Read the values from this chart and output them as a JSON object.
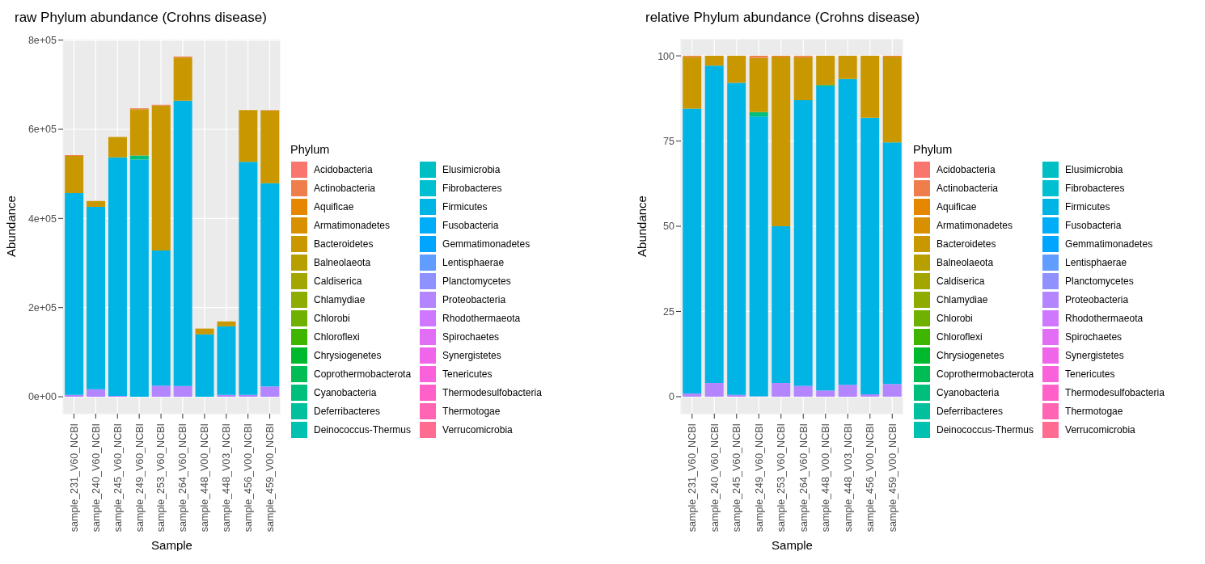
{
  "chart_data": [
    {
      "type": "bar",
      "stacked": true,
      "title": "raw Phylum abundance (Crohns disease)",
      "xlabel": "Sample",
      "ylabel": "Abundance",
      "legend_title": "Phylum",
      "legend": "right",
      "grid": true,
      "categories": [
        "sample_231_V60_NCBI",
        "sample_240_V60_NCBI",
        "sample_245_V60_NCBI",
        "sample_249_V60_NCBI",
        "sample_253_V60_NCBI",
        "sample_264_V60_NCBI",
        "sample_448_V00_NCBI",
        "sample_448_V03_NCBI",
        "sample_456_V00_NCBI",
        "sample_459_V00_NCBI"
      ],
      "ylim": [
        -38000,
        803000
      ],
      "yticks": [
        {
          "value": 0,
          "label": "0e+00"
        },
        {
          "value": 200000,
          "label": "2e+05"
        },
        {
          "value": 400000,
          "label": "4e+05"
        },
        {
          "value": 600000,
          "label": "6e+05"
        },
        {
          "value": 800000,
          "label": "8e+05"
        }
      ],
      "series": [
        {
          "name": "Verrucomicrobia",
          "color": "#ff6c91",
          "values": [
            null,
            null,
            null,
            null,
            null,
            null,
            null,
            null,
            null,
            null
          ]
        },
        {
          "name": "Thermotogae",
          "color": "#ff65b2",
          "values": [
            null,
            null,
            null,
            null,
            null,
            null,
            null,
            null,
            null,
            null
          ]
        },
        {
          "name": "Thermodesulfobacteria",
          "color": "#ff61c9",
          "values": [
            null,
            null,
            null,
            null,
            null,
            null,
            null,
            null,
            null,
            null
          ]
        },
        {
          "name": "Tenericutes",
          "color": "#fa62db",
          "values": [
            null,
            null,
            null,
            null,
            null,
            null,
            null,
            null,
            null,
            null
          ]
        },
        {
          "name": "Synergistetes",
          "color": "#f066ea",
          "values": [
            null,
            null,
            null,
            null,
            null,
            null,
            null,
            null,
            null,
            null
          ]
        },
        {
          "name": "Spirochaetes",
          "color": "#e36ef6",
          "values": [
            null,
            null,
            null,
            null,
            null,
            null,
            null,
            null,
            null,
            null
          ]
        },
        {
          "name": "Rhodothermaeota",
          "color": "#cf78ff",
          "values": [
            null,
            null,
            null,
            null,
            null,
            null,
            null,
            null,
            null,
            null
          ]
        },
        {
          "name": "Proteobacteria",
          "color": "#b385ff",
          "values": [
            4000,
            17000,
            2000,
            null,
            25000,
            24000,
            null,
            4000,
            4000,
            23000
          ]
        },
        {
          "name": "Planctomycetes",
          "color": "#8f91ff",
          "values": [
            null,
            null,
            null,
            null,
            null,
            null,
            null,
            null,
            null,
            null
          ]
        },
        {
          "name": "Lentisphaerae",
          "color": "#619cff",
          "values": [
            null,
            null,
            null,
            null,
            null,
            null,
            null,
            null,
            null,
            null
          ]
        },
        {
          "name": "Gemmatimonadetes",
          "color": "#00a5ff",
          "values": [
            null,
            null,
            null,
            null,
            null,
            null,
            null,
            null,
            null,
            null
          ]
        },
        {
          "name": "Fusobacteria",
          "color": "#00adf8",
          "values": [
            null,
            null,
            null,
            null,
            null,
            null,
            null,
            null,
            null,
            null
          ]
        },
        {
          "name": "Firmicutes",
          "color": "#00b5e6",
          "values": [
            453000,
            409000,
            535000,
            532000,
            303000,
            640000,
            140000,
            154000,
            523000,
            456000
          ]
        },
        {
          "name": "Fibrobacteres",
          "color": "#00bfd0",
          "values": [
            null,
            null,
            null,
            null,
            null,
            null,
            null,
            null,
            null,
            null
          ]
        },
        {
          "name": "Elusimicrobia",
          "color": "#00bfc4",
          "values": [
            null,
            null,
            null,
            null,
            null,
            null,
            null,
            null,
            null,
            null
          ]
        },
        {
          "name": "Deinococcus-Thermus",
          "color": "#00c0b0",
          "values": [
            null,
            null,
            null,
            null,
            null,
            null,
            null,
            null,
            null,
            null
          ]
        },
        {
          "name": "Deferribacteres",
          "color": "#00c09d",
          "values": [
            null,
            null,
            null,
            null,
            null,
            null,
            null,
            null,
            null,
            null
          ]
        },
        {
          "name": "Cyanobacteria",
          "color": "#00bf7d",
          "values": [
            null,
            null,
            null,
            9000,
            null,
            null,
            null,
            null,
            null,
            null
          ]
        },
        {
          "name": "Coprothermobacterota",
          "color": "#00bc55",
          "values": [
            null,
            null,
            null,
            null,
            null,
            null,
            null,
            null,
            null,
            null
          ]
        },
        {
          "name": "Chrysiogenetes",
          "color": "#00b92d",
          "values": [
            null,
            null,
            null,
            null,
            null,
            null,
            null,
            null,
            null,
            null
          ]
        },
        {
          "name": "Chloroflexi",
          "color": "#3fb500",
          "values": [
            null,
            null,
            null,
            null,
            null,
            null,
            null,
            null,
            null,
            null
          ]
        },
        {
          "name": "Chlorobi",
          "color": "#6fb000",
          "values": [
            null,
            null,
            null,
            null,
            null,
            null,
            null,
            null,
            null,
            null
          ]
        },
        {
          "name": "Chlamydiae",
          "color": "#8dab00",
          "values": [
            null,
            null,
            null,
            null,
            null,
            null,
            null,
            null,
            null,
            null
          ]
        },
        {
          "name": "Caldiserica",
          "color": "#a3a500",
          "values": [
            null,
            null,
            null,
            null,
            null,
            null,
            null,
            null,
            null,
            null
          ]
        },
        {
          "name": "Balneolaeota",
          "color": "#b79f00",
          "values": [
            null,
            null,
            null,
            null,
            null,
            null,
            null,
            null,
            null,
            null
          ]
        },
        {
          "name": "Bacteroidetes",
          "color": "#c99800",
          "values": [
            83000,
            13000,
            46000,
            104000,
            325000,
            97000,
            13000,
            11000,
            116000,
            163000
          ]
        },
        {
          "name": "Armatimonadetes",
          "color": "#d89000",
          "values": [
            null,
            null,
            null,
            null,
            null,
            null,
            null,
            null,
            null,
            null
          ]
        },
        {
          "name": "Aquificae",
          "color": "#e58700",
          "values": [
            null,
            null,
            null,
            null,
            null,
            null,
            null,
            null,
            null,
            null
          ]
        },
        {
          "name": "Actinobacteria",
          "color": "#f07e4d",
          "values": [
            2000,
            null,
            null,
            2000,
            2000,
            2000,
            null,
            null,
            null,
            1000
          ]
        },
        {
          "name": "Acidobacteria",
          "color": "#f8766d",
          "values": [
            null,
            null,
            null,
            null,
            null,
            null,
            null,
            null,
            null,
            null
          ]
        }
      ]
    },
    {
      "type": "bar",
      "stacked": true,
      "title": "relative Phylum abundance (Crohns disease)",
      "xlabel": "Sample",
      "ylabel": "Abundance",
      "legend_title": "Phylum",
      "legend": "right",
      "grid": true,
      "categories": [
        "sample_231_V60_NCBI",
        "sample_240_V60_NCBI",
        "sample_245_V60_NCBI",
        "sample_249_V60_NCBI",
        "sample_253_V60_NCBI",
        "sample_264_V60_NCBI",
        "sample_448_V00_NCBI",
        "sample_448_V03_NCBI",
        "sample_456_V00_NCBI",
        "sample_459_V00_NCBI"
      ],
      "ylim": [
        -5,
        105
      ],
      "yticks": [
        0,
        25,
        50,
        75,
        100
      ],
      "series": [
        {
          "name": "Verrucomicrobia",
          "color": "#ff6c91",
          "values": [
            null,
            null,
            null,
            null,
            null,
            null,
            null,
            null,
            null,
            null
          ]
        },
        {
          "name": "Thermotogae",
          "color": "#ff65b2",
          "values": [
            null,
            null,
            null,
            null,
            null,
            null,
            null,
            null,
            null,
            null
          ]
        },
        {
          "name": "Thermodesulfobacteria",
          "color": "#ff61c9",
          "values": [
            null,
            null,
            null,
            null,
            null,
            null,
            null,
            null,
            null,
            null
          ]
        },
        {
          "name": "Tenericutes",
          "color": "#fa62db",
          "values": [
            null,
            null,
            null,
            null,
            null,
            null,
            null,
            null,
            null,
            null
          ]
        },
        {
          "name": "Synergistetes",
          "color": "#f066ea",
          "values": [
            null,
            null,
            null,
            null,
            null,
            null,
            null,
            null,
            null,
            null
          ]
        },
        {
          "name": "Spirochaetes",
          "color": "#e36ef6",
          "values": [
            null,
            null,
            null,
            null,
            null,
            null,
            null,
            null,
            null,
            null
          ]
        },
        {
          "name": "Rhodothermaeota",
          "color": "#cf78ff",
          "values": [
            null,
            null,
            null,
            null,
            null,
            null,
            null,
            null,
            null,
            null
          ]
        },
        {
          "name": "Proteobacteria",
          "color": "#b385ff",
          "values": [
            0.9,
            4.0,
            0.5,
            0.1,
            4.0,
            3.2,
            1.8,
            3.5,
            0.7,
            3.7
          ]
        },
        {
          "name": "Planctomycetes",
          "color": "#8f91ff",
          "values": [
            null,
            null,
            null,
            null,
            null,
            null,
            null,
            null,
            null,
            null
          ]
        },
        {
          "name": "Lentisphaerae",
          "color": "#619cff",
          "values": [
            null,
            null,
            null,
            null,
            null,
            null,
            null,
            null,
            null,
            null
          ]
        },
        {
          "name": "Gemmatimonadetes",
          "color": "#00a5ff",
          "values": [
            null,
            null,
            null,
            null,
            null,
            null,
            null,
            null,
            null,
            null
          ]
        },
        {
          "name": "Fusobacteria",
          "color": "#00adf8",
          "values": [
            null,
            null,
            null,
            null,
            null,
            null,
            null,
            null,
            null,
            null
          ]
        },
        {
          "name": "Firmicutes",
          "color": "#00b5e6",
          "values": [
            83.6,
            93.1,
            91.6,
            82.1,
            46.0,
            83.8,
            89.2,
            89.7,
            81.1,
            70.9
          ]
        },
        {
          "name": "Fibrobacteres",
          "color": "#00bfd0",
          "values": [
            null,
            null,
            null,
            null,
            null,
            null,
            null,
            null,
            null,
            null
          ]
        },
        {
          "name": "Elusimicrobia",
          "color": "#00bfc4",
          "values": [
            null,
            null,
            null,
            null,
            null,
            null,
            null,
            null,
            null,
            null
          ]
        },
        {
          "name": "Deinococcus-Thermus",
          "color": "#00c0b0",
          "values": [
            null,
            null,
            null,
            null,
            null,
            null,
            null,
            null,
            null,
            null
          ]
        },
        {
          "name": "Deferribacteres",
          "color": "#00c09d",
          "values": [
            null,
            null,
            null,
            null,
            null,
            null,
            null,
            null,
            null,
            null
          ]
        },
        {
          "name": "Cyanobacteria",
          "color": "#00bf7d",
          "values": [
            null,
            null,
            null,
            1.3,
            null,
            null,
            0.4,
            null,
            null,
            null
          ]
        },
        {
          "name": "Coprothermobacterota",
          "color": "#00bc55",
          "values": [
            null,
            null,
            null,
            null,
            null,
            null,
            null,
            null,
            null,
            null
          ]
        },
        {
          "name": "Chrysiogenetes",
          "color": "#00b92d",
          "values": [
            null,
            null,
            null,
            null,
            null,
            null,
            null,
            null,
            null,
            null
          ]
        },
        {
          "name": "Chloroflexi",
          "color": "#3fb500",
          "values": [
            null,
            null,
            null,
            null,
            null,
            null,
            null,
            null,
            null,
            null
          ]
        },
        {
          "name": "Chlorobi",
          "color": "#6fb000",
          "values": [
            null,
            null,
            null,
            null,
            null,
            null,
            null,
            null,
            null,
            null
          ]
        },
        {
          "name": "Chlamydiae",
          "color": "#8dab00",
          "values": [
            null,
            null,
            null,
            null,
            null,
            null,
            null,
            null,
            null,
            null
          ]
        },
        {
          "name": "Caldiserica",
          "color": "#a3a500",
          "values": [
            null,
            null,
            null,
            null,
            null,
            null,
            null,
            null,
            null,
            null
          ]
        },
        {
          "name": "Balneolaeota",
          "color": "#b79f00",
          "values": [
            null,
            null,
            null,
            null,
            null,
            null,
            null,
            null,
            null,
            null
          ]
        },
        {
          "name": "Bacteroidetes",
          "color": "#c99800",
          "values": [
            15.2,
            2.9,
            7.9,
            15.9,
            49.8,
            12.6,
            8.6,
            6.8,
            18.2,
            25.2
          ]
        },
        {
          "name": "Armatimonadetes",
          "color": "#d89000",
          "values": [
            null,
            null,
            null,
            null,
            null,
            null,
            null,
            null,
            null,
            null
          ]
        },
        {
          "name": "Aquificae",
          "color": "#e58700",
          "values": [
            null,
            null,
            null,
            null,
            null,
            null,
            null,
            null,
            null,
            null
          ]
        },
        {
          "name": "Actinobacteria",
          "color": "#f07e4d",
          "values": [
            0.3,
            null,
            null,
            0.6,
            0.2,
            0.4,
            null,
            null,
            null,
            0.2
          ]
        },
        {
          "name": "Acidobacteria",
          "color": "#f8766d",
          "values": [
            null,
            null,
            null,
            null,
            null,
            null,
            null,
            null,
            null,
            null
          ]
        }
      ]
    }
  ]
}
